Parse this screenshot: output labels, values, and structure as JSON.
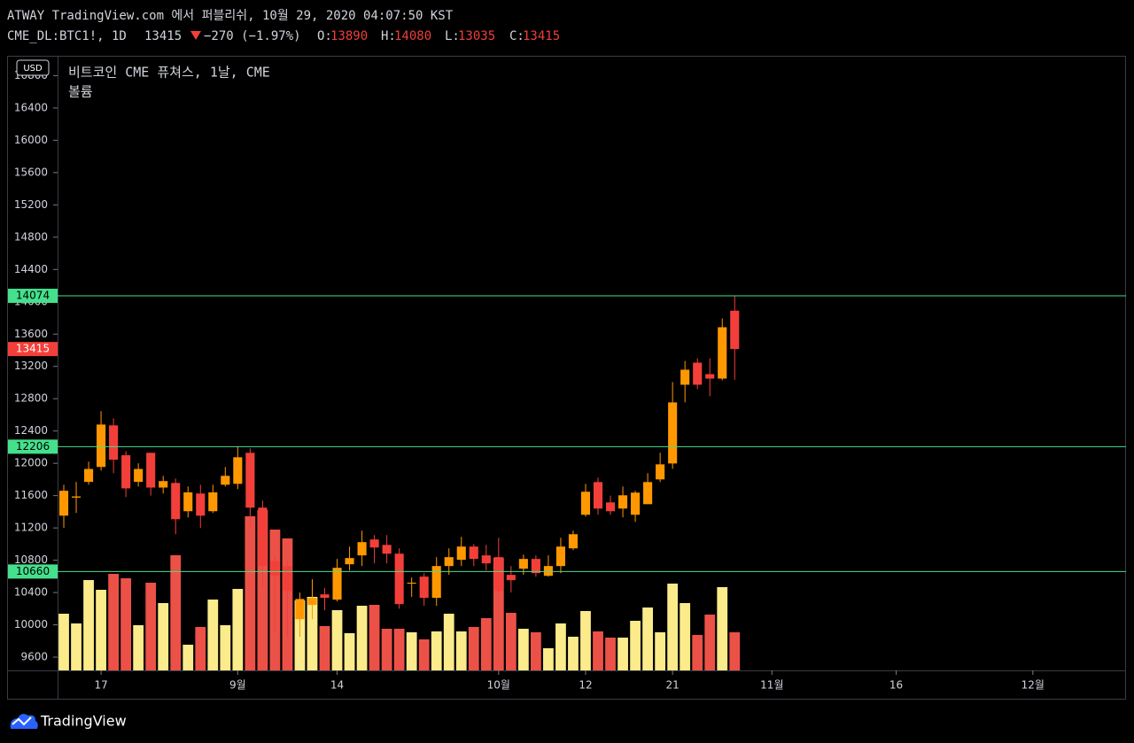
{
  "header": {
    "published": "ATWAY TradingView.com 에서 퍼블리쉬, 10월 29, 2020 04:07:50 KST",
    "symbol": "CME_DL:BTC1!, 1D",
    "change": "−270 (−1.97%)",
    "ohlc_labels": [
      "O:",
      "H:",
      "L:",
      "C:"
    ]
  },
  "footer": {
    "brand": "TradingView"
  },
  "chart_data": {
    "type": "candlestick",
    "title": "비트코인 CME 퓨쳐스, 1날, CME",
    "subtitle": "볼륨",
    "currency": "USD",
    "categories": [
      null,
      null,
      null,
      "17",
      null,
      null,
      null,
      null,
      null,
      null,
      null,
      null,
      null,
      null,
      "9월",
      null,
      null,
      null,
      null,
      null,
      null,
      null,
      "14",
      null,
      null,
      null,
      null,
      null,
      null,
      null,
      null,
      null,
      null,
      null,
      null,
      "10월",
      null,
      null,
      null,
      null,
      null,
      null,
      "12",
      null,
      null,
      null,
      null,
      null,
      null,
      "21",
      null,
      null,
      null,
      null,
      null,
      null,
      null,
      "11월",
      null,
      null,
      null,
      null,
      null,
      null,
      null,
      null,
      null,
      "16",
      null,
      null,
      null,
      null,
      null,
      null,
      null,
      null,
      null,
      null,
      "12월",
      null,
      null,
      null,
      null,
      null,
      null,
      null
    ],
    "open": [
      11352,
      11575,
      11770,
      11955,
      12470,
      12100,
      11770,
      12130,
      11700,
      11757,
      11407,
      11626,
      11407,
      11735,
      11746,
      12130,
      11451,
      10790,
      10728,
      10070,
      10246,
      10377,
      10312,
      10750,
      10860,
      11057,
      10990,
      10881,
      10510,
      10597,
      10334,
      10728,
      10805,
      10969,
      10860,
      10838,
      10619,
      10695,
      10816,
      10607,
      10728,
      10947,
      11363,
      11768,
      11516,
      11440,
      11363,
      11494,
      11801,
      11998,
      12973,
      13246,
      13104,
      13049,
      13890,
      null,
      null,
      null,
      null,
      null,
      null,
      null,
      null,
      null,
      null,
      null,
      null,
      null,
      null,
      null,
      null,
      null,
      null,
      null,
      null,
      null,
      null,
      null,
      null,
      null,
      null,
      null,
      null,
      null,
      null,
      null
    ],
    "high": [
      11735,
      11770,
      12020,
      12645,
      12557,
      12150,
      12000,
      12130,
      11845,
      11812,
      11713,
      11735,
      11735,
      11954,
      12206,
      12185,
      11538,
      10860,
      10800,
      10400,
      10564,
      10454,
      10816,
      10969,
      11166,
      11111,
      11111,
      10947,
      10586,
      10640,
      10838,
      10947,
      11089,
      11000,
      10990,
      11078,
      10728,
      10870,
      10860,
      10860,
      11078,
      11166,
      11746,
      11823,
      11600,
      11713,
      11660,
      11878,
      12130,
      13006,
      13268,
      13301,
      13301,
      13794,
      14080,
      null,
      null,
      null,
      null,
      null,
      null,
      null,
      null,
      null,
      null,
      null,
      null,
      null,
      null,
      null,
      null,
      null,
      null,
      null,
      null,
      null,
      null,
      null,
      null,
      null,
      null,
      null,
      null,
      null,
      null,
      null
    ],
    "low": [
      11200,
      11385,
      11735,
      11910,
      11878,
      11582,
      11713,
      11600,
      11626,
      11122,
      11330,
      11199,
      11385,
      11713,
      11681,
      11188,
      10454,
      9900,
      9850,
      9852,
      10070,
      10180,
      10290,
      10673,
      10728,
      10761,
      10761,
      10200,
      10345,
      10235,
      10235,
      10619,
      10728,
      10728,
      10673,
      10400,
      10400,
      10619,
      10596,
      10596,
      10640,
      10925,
      11341,
      11363,
      11363,
      11330,
      11275,
      11494,
      11768,
      11932,
      12754,
      12918,
      12830,
      13027,
      13035,
      null,
      null,
      null,
      null,
      null,
      null,
      null,
      null,
      null,
      null,
      null,
      null,
      null,
      null,
      null,
      null,
      null,
      null,
      null,
      null,
      null,
      null,
      null,
      null,
      null,
      null,
      null,
      null,
      null,
      null,
      null
    ],
    "close": [
      11660,
      11590,
      11930,
      12480,
      12045,
      11690,
      11930,
      11700,
      11780,
      11308,
      11640,
      11352,
      11640,
      11845,
      12075,
      11451,
      10728,
      10610,
      10420,
      10320,
      10334,
      10334,
      10706,
      10827,
      11024,
      10958,
      10881,
      10257,
      10522,
      10334,
      10728,
      10838,
      10969,
      10816,
      10761,
      10420,
      10553,
      10816,
      10640,
      10728,
      10969,
      11122,
      11648,
      11440,
      11407,
      11604,
      11637,
      11768,
      11987,
      12754,
      13159,
      12973,
      13049,
      13685,
      13415,
      null,
      null,
      null,
      null,
      null,
      null,
      null,
      null,
      null,
      null,
      null,
      null,
      null,
      null,
      null,
      null,
      null,
      null,
      null,
      null,
      null,
      null,
      null,
      null,
      null,
      null,
      null,
      null,
      null,
      null,
      null
    ],
    "volume": [
      64,
      53,
      102,
      91,
      109,
      104,
      51,
      99,
      76,
      130,
      29,
      49,
      80,
      51,
      92,
      174,
      181,
      159,
      149,
      79,
      83,
      50,
      68,
      42,
      73,
      74,
      47,
      47,
      43,
      35,
      44,
      64,
      44,
      49,
      59,
      127,
      65,
      47,
      43,
      25,
      53,
      38,
      67,
      44,
      37,
      37,
      56,
      71,
      43,
      98,
      76,
      40,
      63,
      94,
      43,
      null,
      null,
      null,
      null,
      null,
      null,
      null,
      null,
      null,
      null,
      null,
      null,
      null,
      null,
      null,
      null,
      null,
      null,
      null,
      null,
      null,
      null,
      null,
      null,
      null,
      null,
      null,
      null,
      null,
      null,
      null
    ],
    "ylim": [
      9436,
      17046
    ],
    "yticks": [
      9600,
      10000,
      10400,
      10800,
      11200,
      11600,
      12000,
      12400,
      12800,
      13200,
      13600,
      14000,
      14400,
      14800,
      15200,
      15600,
      16000,
      16400,
      16800
    ],
    "horizontal_lines": [
      14074,
      12206,
      10660
    ],
    "grid": false,
    "up_color": "#ff9800",
    "down_color": "#f23f3a",
    "volume_up_color": "#fbeb8a",
    "volume_down_color": "#ec5148",
    "line_color": "#45e08c"
  }
}
